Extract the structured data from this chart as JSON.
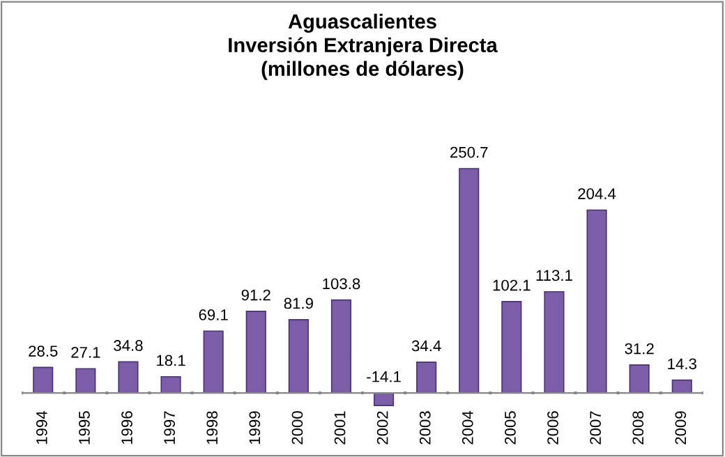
{
  "chart_data": {
    "type": "bar",
    "title": "Aguascalientes\nInversión Extranjera Directa\n(millones de dólares)",
    "categories": [
      "1994",
      "1995",
      "1996",
      "1997",
      "1998",
      "1999",
      "2000",
      "2001",
      "2002",
      "2003",
      "2004",
      "2005",
      "2006",
      "2007",
      "2008",
      "2009"
    ],
    "values": [
      28.5,
      27.1,
      34.8,
      18.1,
      69.1,
      91.2,
      81.9,
      103.8,
      -14.1,
      34.4,
      250.7,
      102.1,
      113.1,
      204.4,
      31.2,
      14.3
    ],
    "color": "#7b5ea7",
    "data_labels": true,
    "tick_labels": "x",
    "grid": false,
    "legend": false
  }
}
